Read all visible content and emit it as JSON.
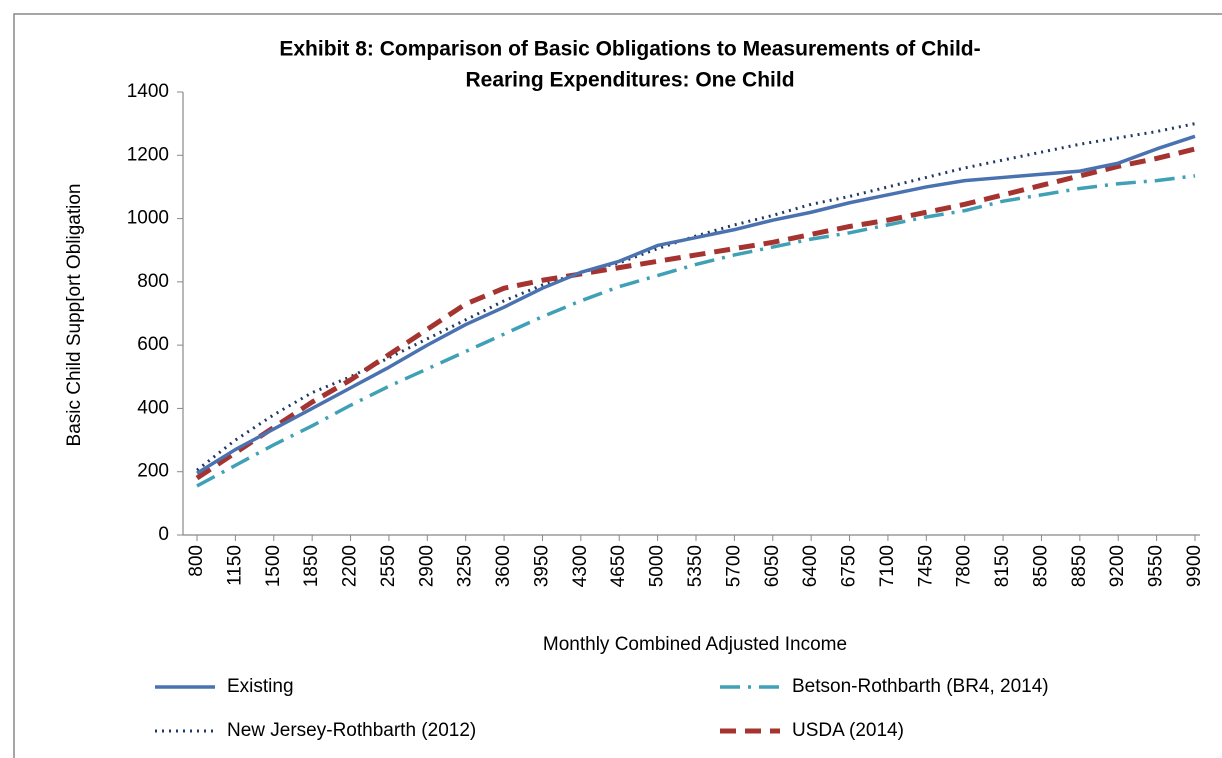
{
  "chart_data": {
    "type": "line",
    "title": [
      "Exhibit 8:  Comparison of Basic Obligations to Measurements of Child-",
      "Rearing Expenditures:   One Child"
    ],
    "x_label": "Monthly Combined Adjusted Income",
    "y_label": "Basic Child Supp[ort Obligation",
    "x": [
      800,
      1150,
      1500,
      1850,
      2200,
      2550,
      2900,
      3250,
      3600,
      3950,
      4300,
      4650,
      5000,
      5350,
      5700,
      6050,
      6400,
      6750,
      7100,
      7450,
      7800,
      8150,
      8500,
      8850,
      9200,
      9550,
      9900
    ],
    "xlim": [
      800,
      9900
    ],
    "xticks": [
      800,
      1150,
      1500,
      1850,
      2200,
      2550,
      2900,
      3250,
      3600,
      3950,
      4300,
      4650,
      5000,
      5350,
      5700,
      6050,
      6400,
      6750,
      7100,
      7450,
      7800,
      8150,
      8500,
      8850,
      9200,
      9550,
      9900
    ],
    "ylim": [
      0,
      1400
    ],
    "yticks": [
      0,
      200,
      400,
      600,
      800,
      1000,
      1200,
      1400
    ],
    "grid": false,
    "legend": "bottom",
    "series": [
      {
        "name": "Existing",
        "color": "#4a72b0",
        "dash": "solid",
        "values": [
          195,
          270,
          335,
          400,
          465,
          530,
          600,
          665,
          720,
          780,
          830,
          865,
          915,
          940,
          965,
          995,
          1020,
          1050,
          1075,
          1100,
          1120,
          1130,
          1140,
          1150,
          1175,
          1220,
          1260
        ]
      },
      {
        "name": "Betson-Rothbarth (BR4, 2014)",
        "color": "#3fa0b6",
        "dash": "dashdot",
        "values": [
          155,
          220,
          285,
          345,
          410,
          470,
          525,
          580,
          635,
          690,
          740,
          785,
          820,
          855,
          885,
          910,
          935,
          955,
          980,
          1005,
          1025,
          1055,
          1075,
          1095,
          1110,
          1120,
          1135
        ]
      },
      {
        "name": "New Jersey-Rothbarth (2012)",
        "color": "#1f3864",
        "dash": "dotted",
        "values": [
          205,
          300,
          380,
          450,
          500,
          560,
          620,
          680,
          740,
          790,
          830,
          860,
          905,
          945,
          980,
          1010,
          1045,
          1070,
          1100,
          1130,
          1160,
          1185,
          1210,
          1235,
          1255,
          1275,
          1300
        ]
      },
      {
        "name": "USDA (2014)",
        "color": "#a5332f",
        "dash": "dashed",
        "values": [
          180,
          260,
          340,
          420,
          490,
          570,
          650,
          730,
          780,
          805,
          825,
          845,
          865,
          885,
          905,
          925,
          950,
          975,
          995,
          1020,
          1045,
          1075,
          1105,
          1135,
          1165,
          1190,
          1220
        ]
      }
    ]
  }
}
